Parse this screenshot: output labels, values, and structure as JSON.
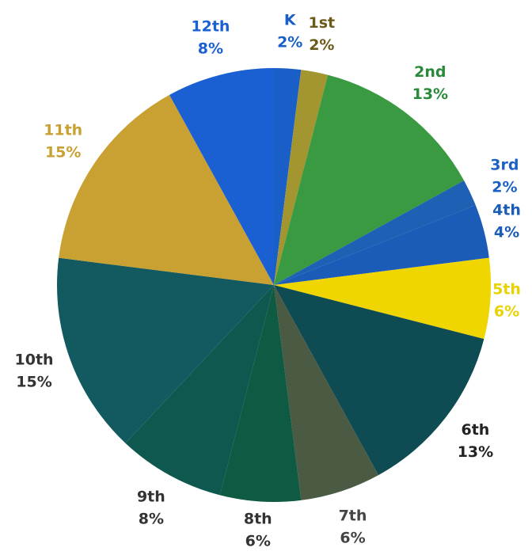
{
  "chart_data": {
    "type": "pie",
    "categories": [
      "K",
      "1st",
      "2nd",
      "3rd",
      "4th",
      "5th",
      "6th",
      "7th",
      "8th",
      "9th",
      "10th",
      "11th",
      "12th"
    ],
    "values": [
      2,
      2,
      13,
      2,
      4,
      6,
      13,
      6,
      6,
      8,
      15,
      15,
      8
    ],
    "value_labels": [
      "2%",
      "2%",
      "13%",
      "2%",
      "4%",
      "6%",
      "13%",
      "6%",
      "6%",
      "8%",
      "15%",
      "15%",
      "8%"
    ],
    "colors": [
      "#1a5fc8",
      "#a39530",
      "#3a9a42",
      "#1d60b4",
      "#1a5cb8",
      "#efd600",
      "#0f4b52",
      "#4b5a42",
      "#0f5a42",
      "#0f5850",
      "#135a60",
      "#c9a032",
      "#1a60d2"
    ],
    "label_colors": [
      "#1a5fc8",
      "#6b5a1a",
      "#2a8a3a",
      "#1d60c4",
      "#1a5cb8",
      "#e8d200",
      "#222222",
      "#444444",
      "#333333",
      "#333333",
      "#333333",
      "#c9a032",
      "#1a60d2"
    ]
  }
}
